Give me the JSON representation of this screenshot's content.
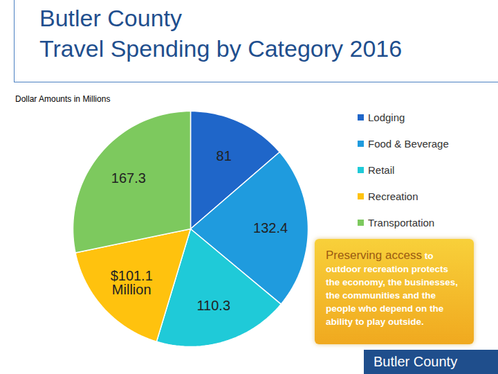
{
  "chart_data": {
    "type": "pie",
    "title": "Butler County\nTravel Spending by Category 2016",
    "subtitle": "Dollar Amounts in Millions",
    "categories": [
      "Lodging",
      "Food & Beverage",
      "Retail",
      "Recreation",
      "Transportation"
    ],
    "values": [
      81,
      132.4,
      110.3,
      101.1,
      167.3
    ],
    "value_labels": [
      "81",
      "132.4",
      "110.3",
      "$101.1 Million",
      "167.3"
    ],
    "colors": [
      "#1f66c9",
      "#1f9bde",
      "#1fcad8",
      "#ffc20e",
      "#7dc95e"
    ],
    "data_labels": true,
    "legend": "right",
    "annotations": [
      "Preserving access",
      "to outdoor recreation protects the economy, the businesses, the communities and the people who depend on the ability to play outside.",
      "Butler County"
    ]
  }
}
